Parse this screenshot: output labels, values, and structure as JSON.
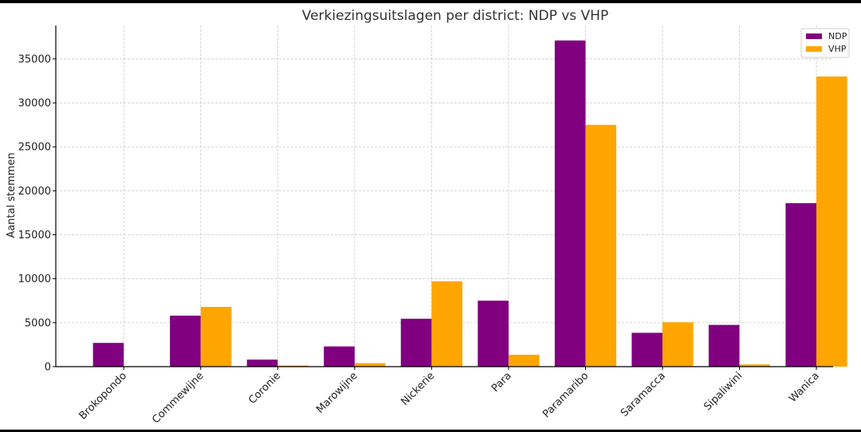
{
  "chart_data": {
    "type": "bar",
    "title": "Verkiezingsuitslagen per district: NDP vs VHP",
    "xlabel": "",
    "ylabel": "Aantal stemmen",
    "categories": [
      "Brokopondo",
      "Commewijne",
      "Coronie",
      "Marowijne",
      "Nickerie",
      "Para",
      "Paramaribo",
      "Saramacca",
      "Sipaliwini",
      "Wanica"
    ],
    "series": [
      {
        "name": "NDP",
        "color": "#800080",
        "values": [
          2700,
          5800,
          800,
          2300,
          5450,
          7500,
          37100,
          3850,
          4750,
          18600
        ]
      },
      {
        "name": "VHP",
        "color": "#FFA500",
        "values": [
          50,
          6800,
          130,
          400,
          9700,
          1350,
          27500,
          5050,
          250,
          33000
        ]
      }
    ],
    "ylim": [
      0,
      38800
    ],
    "yticks": [
      0,
      5000,
      10000,
      15000,
      20000,
      25000,
      30000,
      35000
    ],
    "grid": true,
    "legend_position": "top-right"
  }
}
